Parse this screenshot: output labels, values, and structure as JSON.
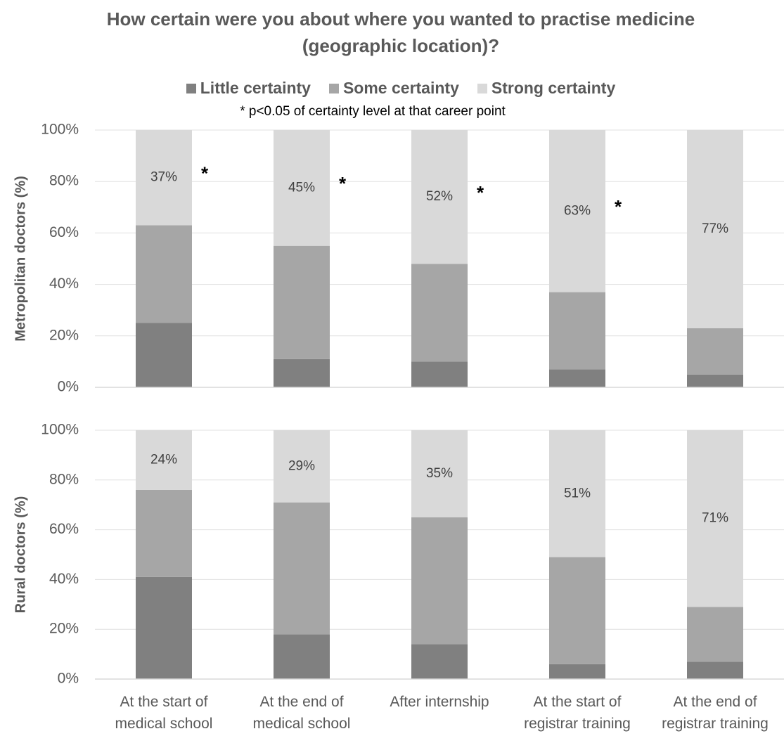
{
  "title": "How certain were you about where you wanted to practise medicine (geographic location)?",
  "note": "* p<0.05 of certainty level at that career point",
  "chart_data": [
    {
      "type": "stacked_bar",
      "y_label": "Metropolitan doctors (%)",
      "series": [
        {
          "name": "Little certainty",
          "color": "#808080",
          "values": [
            25,
            11,
            10,
            7,
            5
          ]
        },
        {
          "name": "Some certainty",
          "color": "#a6a6a6",
          "values": [
            38,
            44,
            38,
            30,
            18
          ]
        },
        {
          "name": "Strong certainty",
          "color": "#d9d9d9",
          "values": [
            37,
            45,
            52,
            63,
            77
          ],
          "value_labels": [
            "37%",
            "45%",
            "52%",
            "63%",
            "77%"
          ]
        }
      ],
      "significance_markers": [
        "*",
        "*",
        "*",
        "*",
        null
      ],
      "ylim": [
        0,
        100
      ],
      "yticks": [
        {
          "value": 0,
          "label": "0%"
        },
        {
          "value": 20,
          "label": "20%"
        },
        {
          "value": 40,
          "label": "40%"
        },
        {
          "value": 60,
          "label": "60%"
        },
        {
          "value": 80,
          "label": "80%"
        },
        {
          "value": 100,
          "label": "100%"
        }
      ],
      "grid": true
    },
    {
      "type": "stacked_bar",
      "y_label": "Rural doctors (%)",
      "categories": [
        "At the start of medical school",
        "At the end of medical school",
        "After internship",
        "At the start of registrar training",
        "At the end of registrar training"
      ],
      "series": [
        {
          "color": "#808080",
          "values": [
            41,
            18,
            14,
            6,
            7
          ]
        },
        {
          "color": "#a6a6a6",
          "values": [
            35,
            53,
            51,
            43,
            22
          ]
        },
        {
          "color": "#d9d9d9",
          "values": [
            24,
            29,
            35,
            51,
            71
          ],
          "value_labels": [
            "24%",
            "29%",
            "35%",
            "51%",
            "71%"
          ]
        }
      ],
      "ylim": [
        0,
        100
      ],
      "yticks": [
        {
          "value": 0,
          "label": "0%"
        },
        {
          "value": 20,
          "label": "20%"
        },
        {
          "value": 40,
          "label": "40%"
        },
        {
          "value": 60,
          "label": "60%"
        },
        {
          "value": 80,
          "label": "80%"
        },
        {
          "value": 100,
          "label": "100%"
        }
      ],
      "grid": true
    }
  ]
}
